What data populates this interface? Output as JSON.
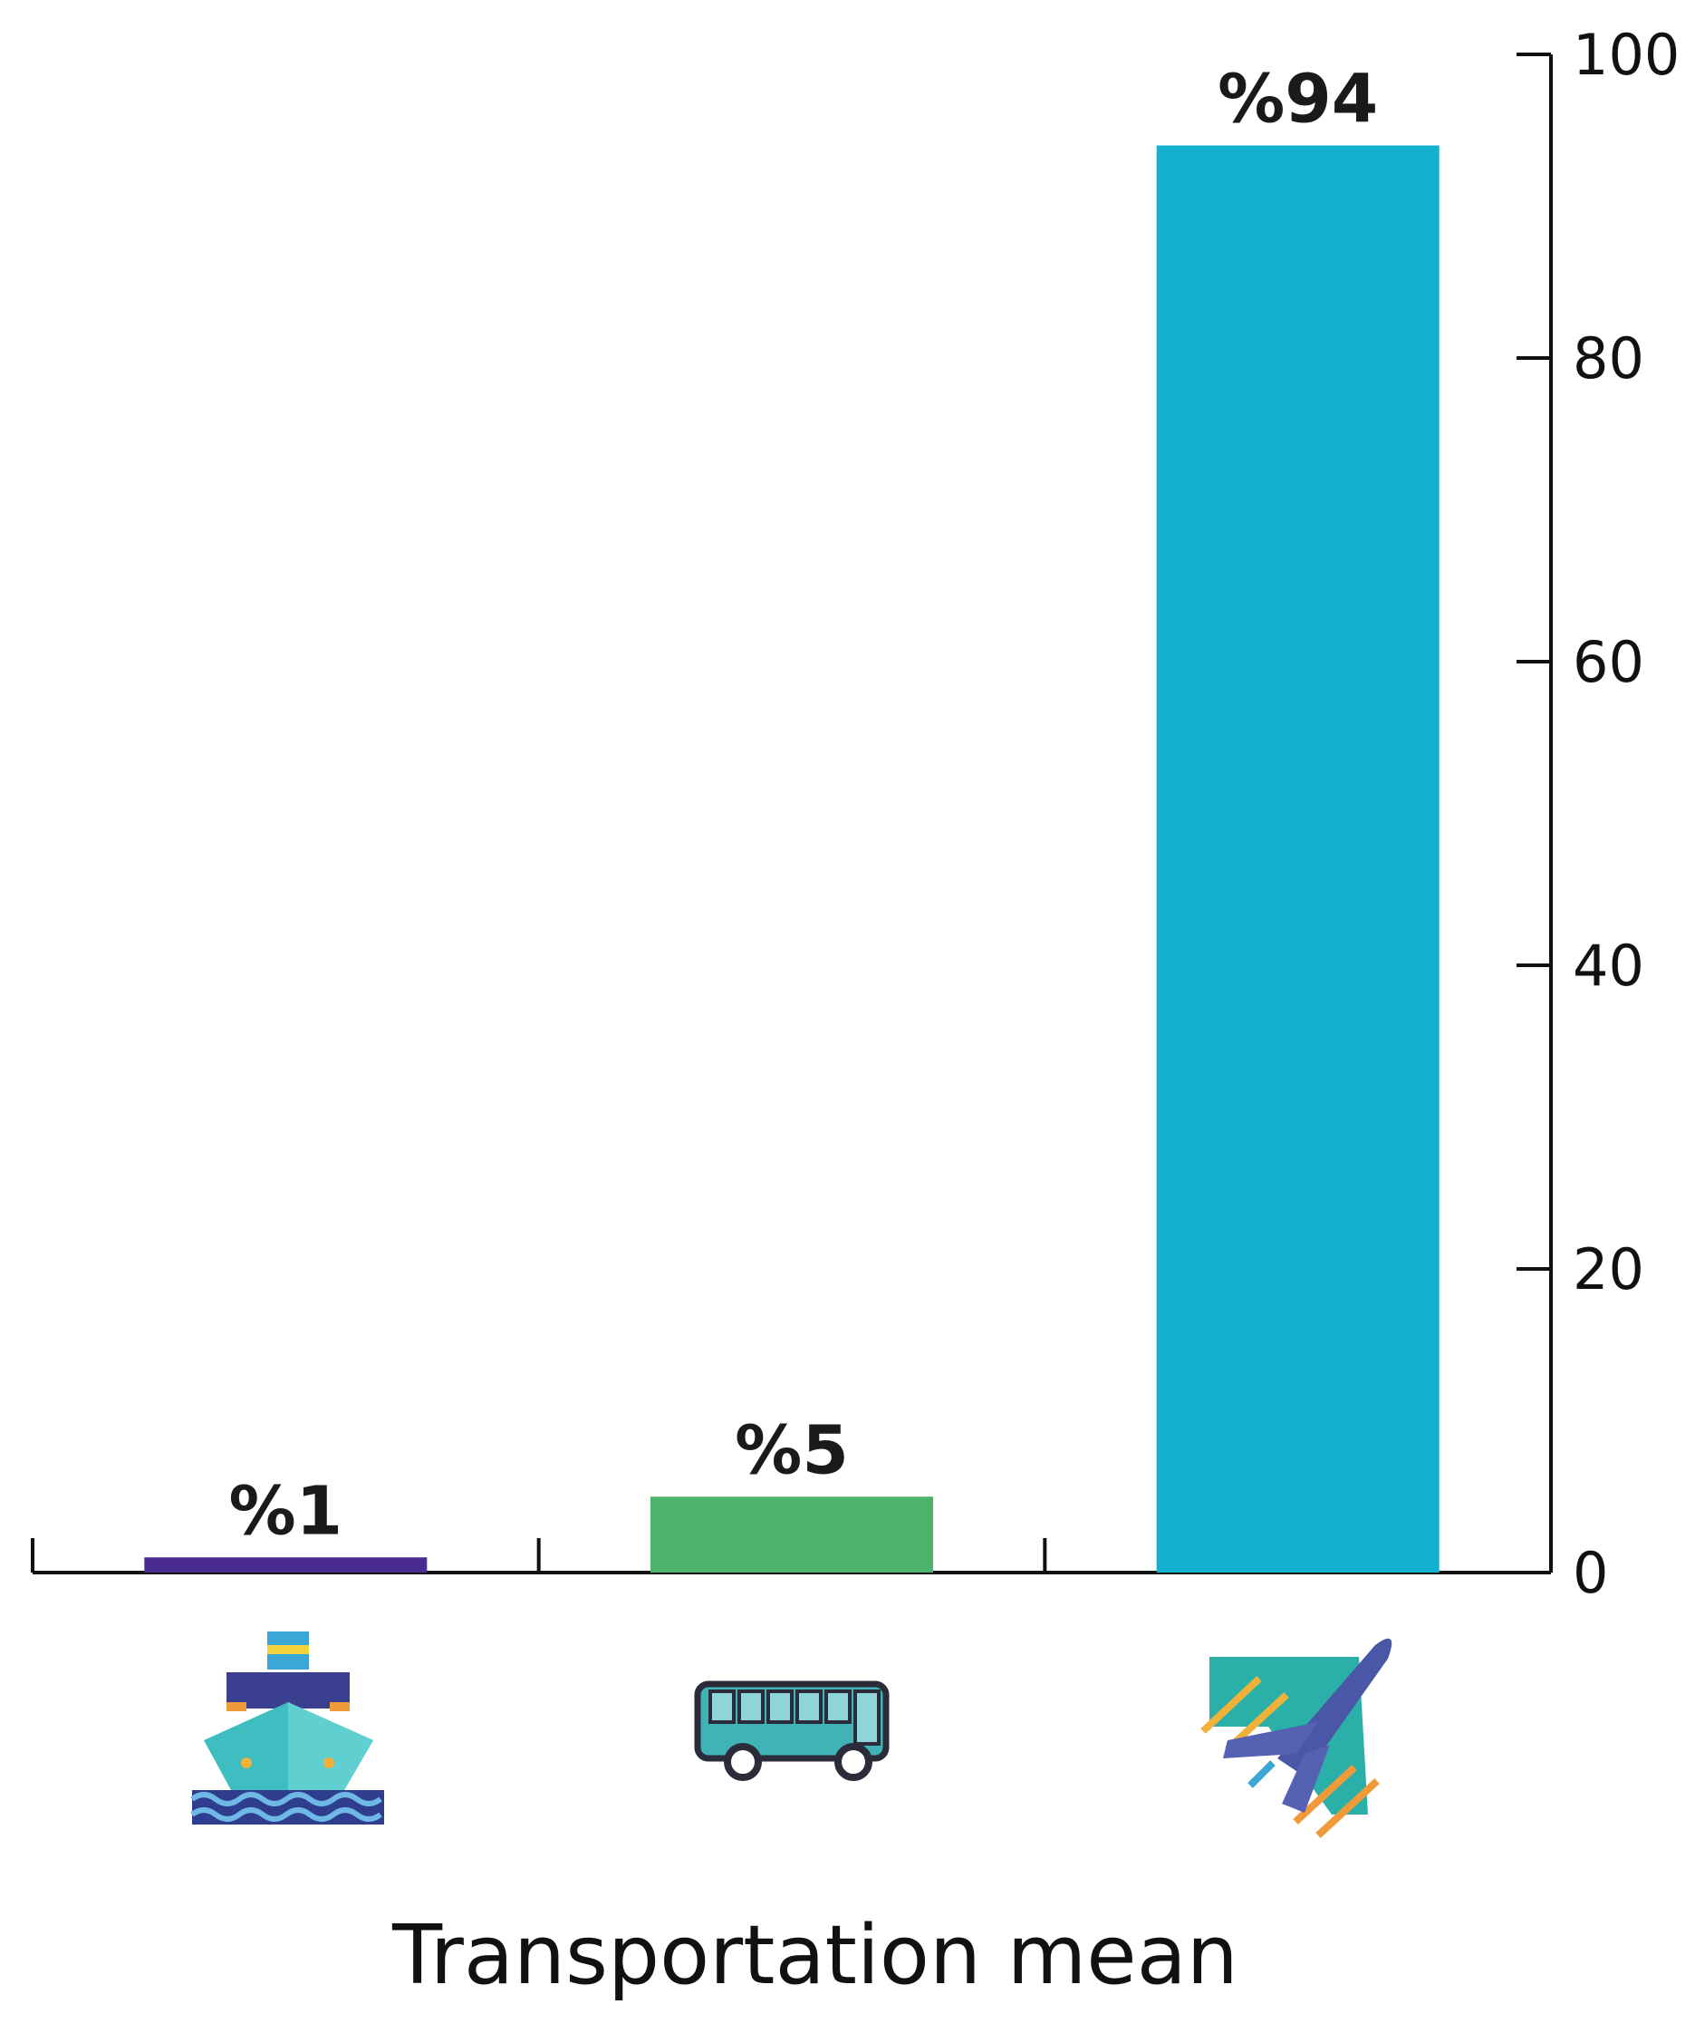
{
  "chart_data": {
    "type": "bar",
    "categories": [
      "ship",
      "bus",
      "airplane"
    ],
    "category_icons": [
      "ship-icon",
      "bus-icon",
      "airplane-icon"
    ],
    "values": [
      1,
      5,
      94
    ],
    "data_labels": [
      "%1",
      "%5",
      "%94"
    ],
    "bar_colors": [
      "#4a2b8f",
      "#4db36b",
      "#13b0d0"
    ],
    "title": "",
    "xlabel": "Transportation mean",
    "ylabel": "",
    "ylim": [
      0,
      100
    ],
    "yticks": [
      0,
      20,
      40,
      60,
      80,
      100
    ],
    "y_axis_side": "right",
    "grid": false,
    "legend": "none"
  }
}
